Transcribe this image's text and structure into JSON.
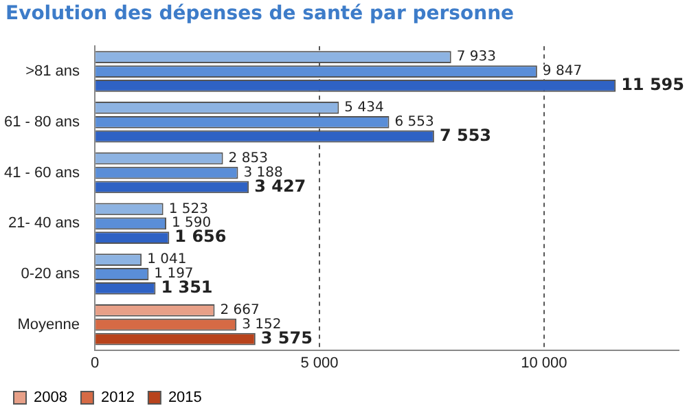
{
  "chart_data": {
    "type": "bar",
    "orientation": "horizontal",
    "title": "Evolution des dépenses de santé par personne",
    "categories": [
      ">81 ans",
      "61 - 80 ans",
      "41 - 60 ans",
      "21- 40 ans",
      "0-20 ans",
      "Moyenne"
    ],
    "series": [
      {
        "name": "2008",
        "color": "#e8a088",
        "colors": [
          "#8db3e2",
          "#8db3e2",
          "#8db3e2",
          "#8db3e2",
          "#8db3e2",
          "#e8a088"
        ],
        "values": [
          7933,
          5434,
          2853,
          1523,
          1041,
          2667
        ],
        "value_labels": [
          "7 933",
          "5 434",
          "2 853",
          "1 523",
          "1 041",
          "2 667"
        ]
      },
      {
        "name": "2012",
        "color": "#d66a45",
        "colors": [
          "#5a8ed8",
          "#5a8ed8",
          "#5a8ed8",
          "#5a8ed8",
          "#5a8ed8",
          "#d66a45"
        ],
        "values": [
          9847,
          6553,
          3188,
          1590,
          1197,
          3152
        ],
        "value_labels": [
          "9 847",
          "6 553",
          "3 188",
          "1 590",
          "1 197",
          "3 152"
        ]
      },
      {
        "name": "2015",
        "color": "#b8431c",
        "colors": [
          "#2f62c4",
          "#2f62c4",
          "#2f62c4",
          "#2f62c4",
          "#2f62c4",
          "#b8431c"
        ],
        "values": [
          11595,
          7553,
          3427,
          1656,
          1351,
          3575
        ],
        "value_labels": [
          "11 595",
          "7 553",
          "3 427",
          "1 656",
          "1 351",
          "3 575"
        ]
      }
    ],
    "xlim": [
      0,
      13000
    ],
    "xticks": [
      {
        "value": 0,
        "label": "0"
      },
      {
        "value": 5000,
        "label": "5 000"
      },
      {
        "value": 10000,
        "label": "10 000"
      }
    ],
    "grid": "x",
    "legend": "bottom"
  }
}
